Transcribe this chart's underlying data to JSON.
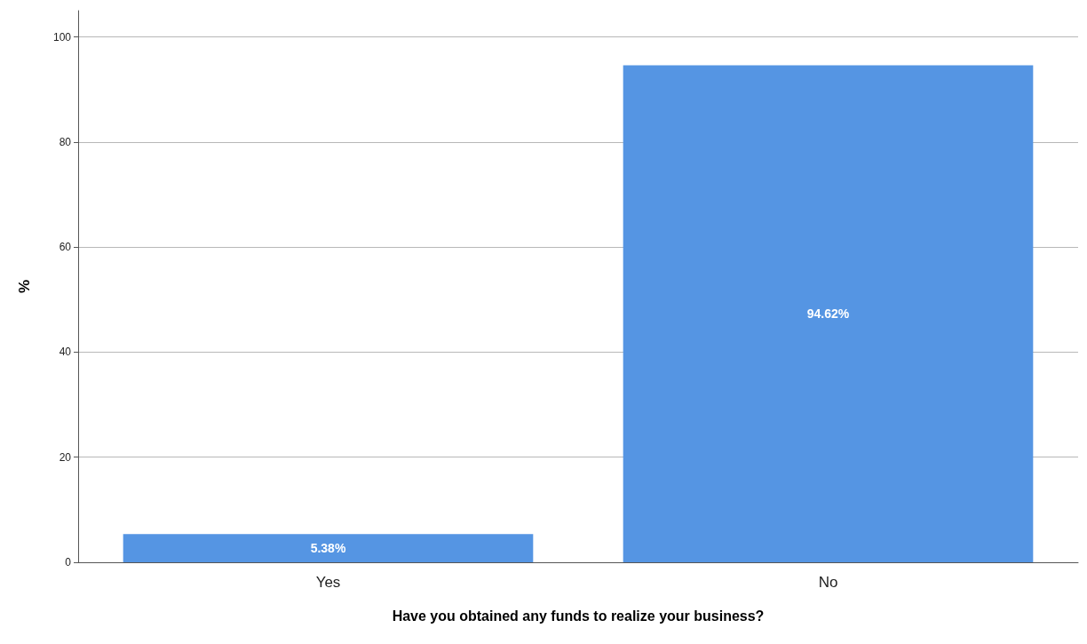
{
  "chart_data": {
    "type": "bar",
    "xlabel": "Have you obtained any funds to realize your business?",
    "ylabel": "%",
    "categories": [
      "Yes",
      "No"
    ],
    "values": [
      5.38,
      94.62
    ],
    "value_labels": [
      "5.38%",
      "94.62%"
    ],
    "color": "#5595e3",
    "ylim": [
      0,
      105
    ],
    "yticks": [
      0,
      20,
      40,
      60,
      80,
      100
    ],
    "grid": "y"
  }
}
